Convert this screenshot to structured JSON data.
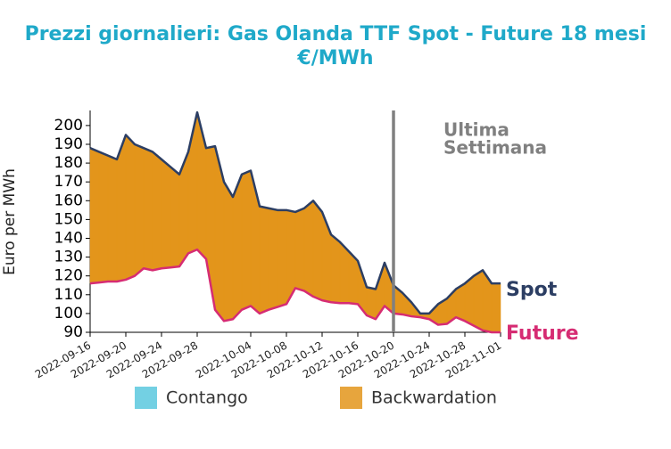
{
  "chart_data": {
    "type": "band-line",
    "title": [
      "Prezzi giornalieri: Gas Olanda TTF Spot - Future 18 mesi",
      "€/MWh"
    ],
    "y_label": "Euro per MWh",
    "x": [
      "2022-09-16",
      "2022-09-17",
      "2022-09-18",
      "2022-09-19",
      "2022-09-20",
      "2022-09-21",
      "2022-09-22",
      "2022-09-23",
      "2022-09-24",
      "2022-09-25",
      "2022-09-26",
      "2022-09-27",
      "2022-09-28",
      "2022-09-29",
      "2022-09-30",
      "2022-10-01",
      "2022-10-02",
      "2022-10-03",
      "2022-10-04",
      "2022-10-05",
      "2022-10-06",
      "2022-10-07",
      "2022-10-08",
      "2022-10-09",
      "2022-10-10",
      "2022-10-11",
      "2022-10-12",
      "2022-10-13",
      "2022-10-14",
      "2022-10-15",
      "2022-10-16",
      "2022-10-17",
      "2022-10-18",
      "2022-10-19",
      "2022-10-20",
      "2022-10-21",
      "2022-10-22",
      "2022-10-23",
      "2022-10-24",
      "2022-10-25",
      "2022-10-26",
      "2022-10-27",
      "2022-10-28",
      "2022-10-29",
      "2022-10-30",
      "2022-10-31",
      "2022-11-01"
    ],
    "series": [
      {
        "name": "Spot",
        "color": "#2c3e63",
        "values": [
          188,
          186,
          184,
          182,
          195,
          190,
          188,
          186,
          182,
          178,
          174,
          186,
          207,
          188,
          189,
          170,
          162,
          174,
          176,
          157,
          156,
          155,
          155,
          154,
          156,
          160,
          154,
          142,
          138,
          133,
          128,
          114,
          113,
          127,
          115,
          111,
          106,
          100,
          100,
          105,
          108,
          113,
          116,
          120,
          123,
          116,
          116
        ]
      },
      {
        "name": "Future",
        "color": "#d62c73",
        "values": [
          116,
          116.5,
          117,
          117,
          118,
          120,
          124,
          123,
          124,
          124.5,
          125,
          132,
          134,
          129,
          102,
          96,
          97,
          102,
          104,
          100,
          102,
          103.5,
          105,
          113.5,
          112,
          109,
          107,
          106,
          105.5,
          105.5,
          105,
          99,
          97,
          104,
          100,
          99.5,
          98.5,
          98,
          97,
          94,
          94.5,
          98,
          96,
          93.5,
          91,
          90,
          90
        ]
      }
    ],
    "legend": [
      {
        "name": "Contango",
        "color": "#5bc8de"
      },
      {
        "name": "Backwardation",
        "color": "#e3951b"
      }
    ],
    "xlim": [
      "2022-09-16",
      "2022-11-01"
    ],
    "xticks": [
      "2022-09-16",
      "2022-09-20",
      "2022-09-24",
      "2022-09-28",
      "2022-10-04",
      "2022-10-08",
      "2022-10-12",
      "2022-10-16",
      "2022-10-20",
      "2022-10-24",
      "2022-10-28",
      "2022-11-01"
    ],
    "ylim": [
      90,
      208
    ],
    "yticks": [
      90,
      100,
      110,
      120,
      130,
      140,
      150,
      160,
      170,
      180,
      190,
      200
    ],
    "vline": {
      "x": "2022-10-20",
      "color": "#808080",
      "text": [
        "Ultima",
        "Settimana"
      ]
    }
  }
}
